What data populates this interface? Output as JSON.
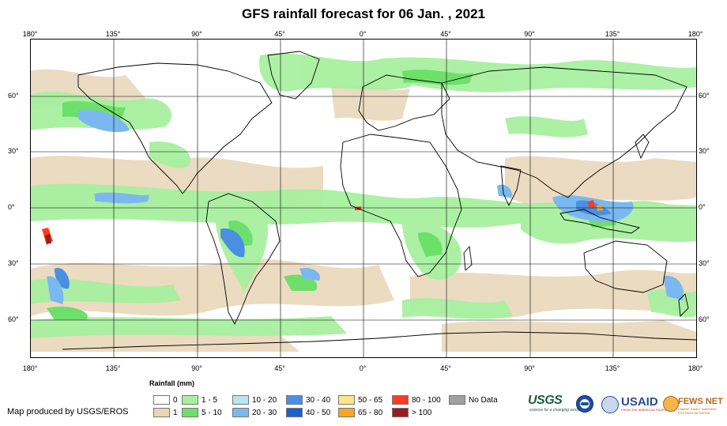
{
  "title": "GFS rainfall forecast for 06 Jan. , 2021",
  "axes": {
    "lon_labels": [
      "180°",
      "135°",
      "90°",
      "45°",
      "0°",
      "45°",
      "90°",
      "135°",
      "180°"
    ],
    "lat_labels": [
      "60°",
      "30°",
      "0°",
      "30°",
      "60°"
    ]
  },
  "legend": {
    "title": "Rainfall (mm)",
    "items": [
      {
        "label": "0",
        "color": "#ffffff"
      },
      {
        "label": "1",
        "color": "#e8d5b7"
      },
      {
        "label": "1 - 5",
        "color": "#a8f0a0"
      },
      {
        "label": "5 - 10",
        "color": "#6de06a"
      },
      {
        "label": "10 - 20",
        "color": "#b9e4f4"
      },
      {
        "label": "20 - 30",
        "color": "#7ab8ef"
      },
      {
        "label": "30 - 40",
        "color": "#4a8fe2"
      },
      {
        "label": "40 - 50",
        "color": "#1c5fd0"
      },
      {
        "label": "50 - 65",
        "color": "#fde68a"
      },
      {
        "label": "65 - 80",
        "color": "#f5a623"
      },
      {
        "label": "80 - 100",
        "color": "#ff3b1f"
      },
      {
        "label": "> 100",
        "color": "#9b1c1c"
      },
      {
        "label": "No Data",
        "color": "#a0a0a0"
      }
    ]
  },
  "credit": "Map produced by USGS/EROS",
  "logos": {
    "usgs": "USGS",
    "usgs_tagline": "science for a changing world",
    "usaid": "USAID",
    "usaid_tagline": "FROM THE AMERICAN PEOPLE",
    "fews": "FEWS NET",
    "fews_tagline": "FAMINE EARLY WARNING SYSTEMS NETWORK"
  }
}
